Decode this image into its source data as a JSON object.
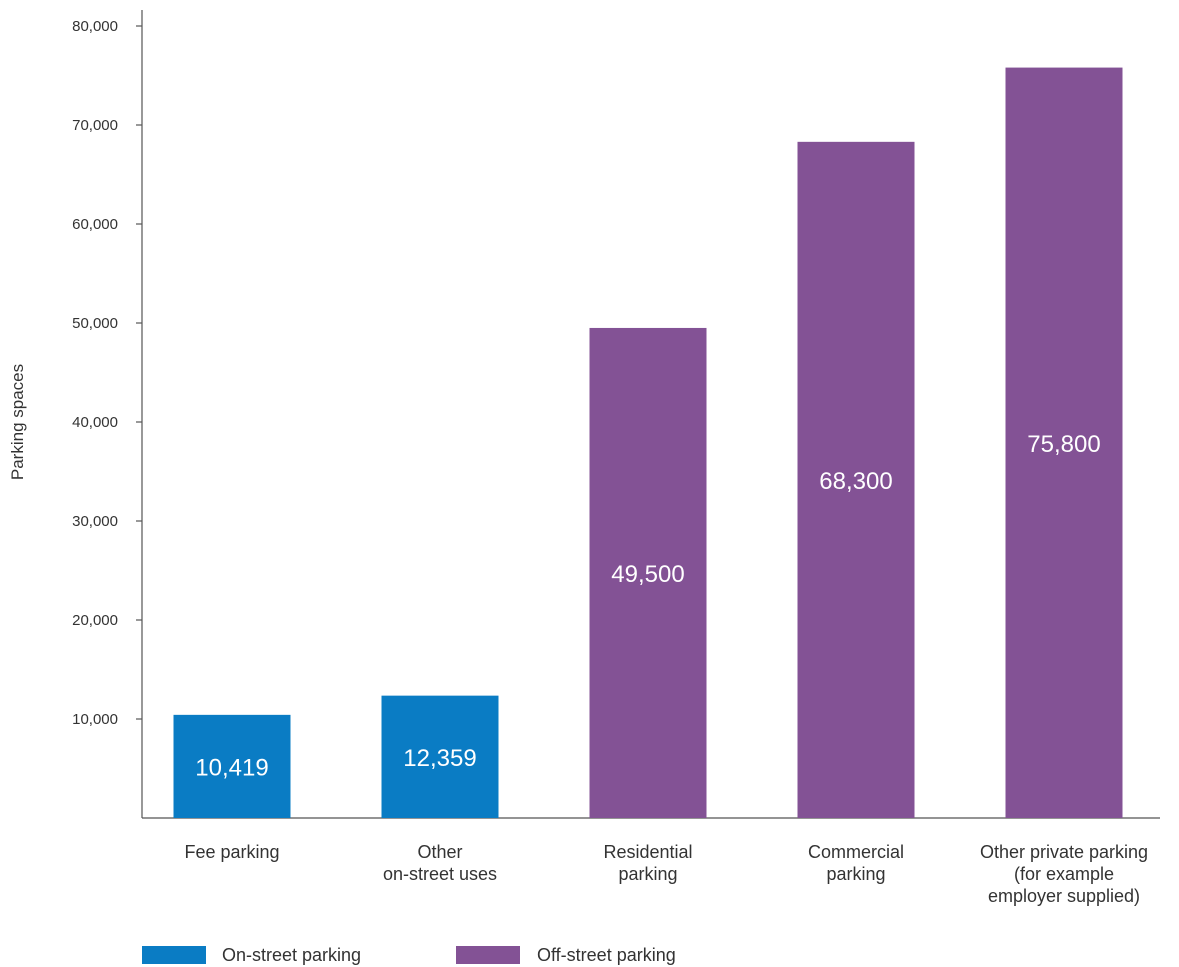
{
  "chart_data": {
    "type": "bar",
    "title": "",
    "xlabel": "",
    "ylabel": "Parking spaces",
    "ylim": [
      0,
      80000
    ],
    "yticks": [
      10000,
      20000,
      30000,
      40000,
      50000,
      60000,
      70000,
      80000
    ],
    "ytick_labels": [
      "10,000",
      "20,000",
      "30,000",
      "40,000",
      "50,000",
      "60,000",
      "70,000",
      "80,000"
    ],
    "grid": false,
    "legend_position": "bottom-left",
    "categories": [
      [
        "Fee parking"
      ],
      [
        "Other",
        "on-street uses"
      ],
      [
        "Residential",
        "parking"
      ],
      [
        "Commercial",
        "parking"
      ],
      [
        "Other private parking",
        "(for example",
        "employer supplied)"
      ]
    ],
    "values": [
      10419,
      12359,
      49500,
      68300,
      75800
    ],
    "value_labels": [
      "10,419",
      "12,359",
      "49,500",
      "68,300",
      "75,800"
    ],
    "bar_groups": [
      0,
      0,
      1,
      1,
      1
    ],
    "legend": [
      {
        "name": "On-street parking",
        "color": "#0a7cc4"
      },
      {
        "name": "Off-street parking",
        "color": "#835295"
      }
    ]
  }
}
